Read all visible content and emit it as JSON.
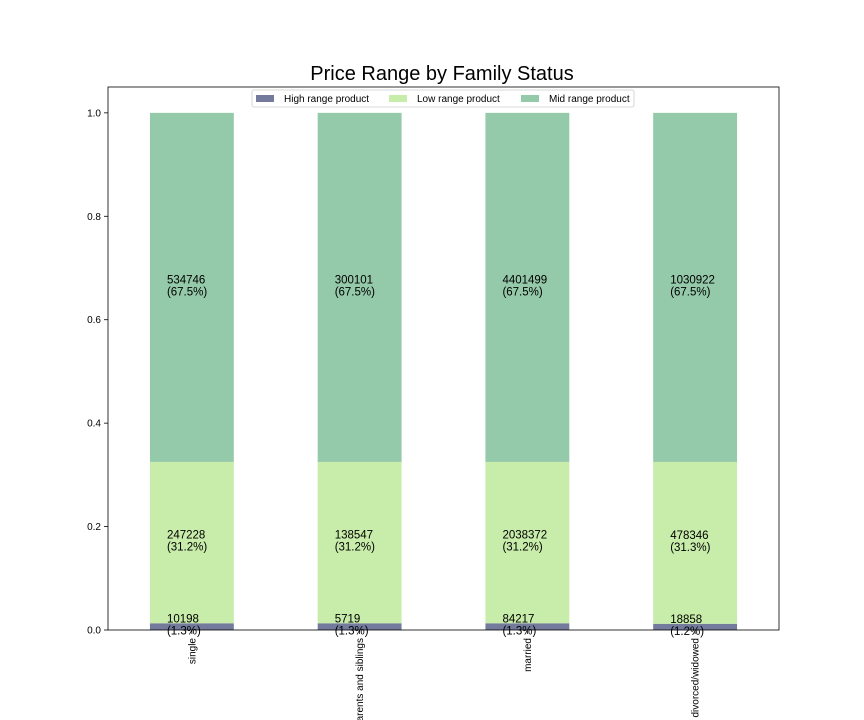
{
  "chart_data": {
    "type": "bar",
    "stacked": true,
    "normalized": true,
    "title": "Price Range by Family Status",
    "xlabel": "",
    "ylabel": "",
    "ylim": [
      0,
      1.05
    ],
    "yticks": [
      "0.0",
      "0.2",
      "0.4",
      "0.6",
      "0.8",
      "1.0"
    ],
    "categories": [
      "single",
      "parents and siblings",
      "married",
      "divorced/widowed"
    ],
    "legend_position": "top-center",
    "series": [
      {
        "name": "High range product",
        "color": "#737a9c",
        "values": [
          0.013,
          0.013,
          0.013,
          0.012
        ],
        "labels": [
          [
            "10198",
            "(1.3%)"
          ],
          [
            "5719",
            "(1.3%)"
          ],
          [
            "84217",
            "(1.3%)"
          ],
          [
            "18858",
            "(1.2%)"
          ]
        ]
      },
      {
        "name": "Low range product",
        "color": "#c8ecaa",
        "values": [
          0.312,
          0.312,
          0.312,
          0.313
        ],
        "labels": [
          [
            "247228",
            "(31.2%)"
          ],
          [
            "138547",
            "(31.2%)"
          ],
          [
            "2038372",
            "(31.2%)"
          ],
          [
            "478346",
            "(31.3%)"
          ]
        ]
      },
      {
        "name": "Mid range product",
        "color": "#94c9a9",
        "values": [
          0.675,
          0.675,
          0.675,
          0.675
        ],
        "labels": [
          [
            "534746",
            "(67.5%)"
          ],
          [
            "300101",
            "(67.5%)"
          ],
          [
            "4401499",
            "(67.5%)"
          ],
          [
            "1030922",
            "(67.5%)"
          ]
        ]
      }
    ]
  }
}
